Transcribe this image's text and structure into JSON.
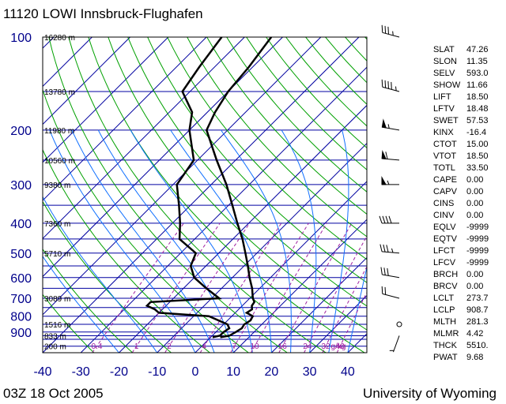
{
  "title": "11120 LOWI Innsbruck-Flughafen",
  "date": "03Z 18 Oct 2005",
  "credit": "University of Wyoming",
  "chart_data": {
    "type": "line",
    "diagram": "Skew-T log-P",
    "xlabel": "",
    "ylabel": "",
    "xlim": [
      -40,
      45
    ],
    "x_ticks": [
      -40,
      -30,
      -20,
      -10,
      0,
      10,
      20,
      30,
      40
    ],
    "ylim": [
      1050,
      100
    ],
    "y_ticks": [
      100,
      200,
      300,
      400,
      500,
      600,
      700,
      800,
      900
    ],
    "y_scale": "log",
    "height_labels": [
      {
        "p": 100,
        "label": "16280 m"
      },
      {
        "p": 150,
        "label": "13780 m"
      },
      {
        "p": 200,
        "label": "11980 m"
      },
      {
        "p": 250,
        "label": "10560 m"
      },
      {
        "p": 300,
        "label": "9380 m"
      },
      {
        "p": 400,
        "label": "7360 m"
      },
      {
        "p": 500,
        "label": "5710 m"
      },
      {
        "p": 700,
        "label": "3089 m"
      },
      {
        "p": 850,
        "label": "1516 m"
      },
      {
        "p": 925,
        "label": "833 m"
      },
      {
        "p": 1000,
        "label": "200 m"
      }
    ],
    "mixing_ratio_labels": [
      "0.4",
      "1",
      "2",
      "4",
      "7",
      "10",
      "16",
      "24",
      "32",
      "40",
      "g/kg"
    ],
    "series": [
      {
        "color": "#000000",
        "points": [
          {
            "p": 936,
            "t": 2.5
          },
          {
            "p": 925,
            "t": 4.5
          },
          {
            "p": 900,
            "t": 5.2
          },
          {
            "p": 875,
            "t": 5.8
          },
          {
            "p": 850,
            "t": 5.4
          },
          {
            "p": 825,
            "t": 6.0
          },
          {
            "p": 800,
            "t": 5.5
          },
          {
            "p": 780,
            "t": 3.0
          },
          {
            "p": 760,
            "t": 3.5
          },
          {
            "p": 740,
            "t": 2.5
          },
          {
            "p": 720,
            "t": 2.2
          },
          {
            "p": 700,
            "t": 0.8
          },
          {
            "p": 650,
            "t": -2.0
          },
          {
            "p": 600,
            "t": -5.5
          },
          {
            "p": 550,
            "t": -9.0
          },
          {
            "p": 500,
            "t": -13.0
          },
          {
            "p": 450,
            "t": -17.5
          },
          {
            "p": 400,
            "t": -23.0
          },
          {
            "p": 350,
            "t": -29.0
          },
          {
            "p": 300,
            "t": -36.0
          },
          {
            "p": 250,
            "t": -45.0
          },
          {
            "p": 200,
            "t": -55.5
          },
          {
            "p": 175,
            "t": -58.0
          },
          {
            "p": 150,
            "t": -60.0
          },
          {
            "p": 125,
            "t": -61.0
          },
          {
            "p": 100,
            "t": -63.0
          }
        ]
      },
      {
        "color": "#000000",
        "points": [
          {
            "p": 936,
            "t": 0.5
          },
          {
            "p": 925,
            "t": 2.0
          },
          {
            "p": 900,
            "t": 2.0
          },
          {
            "p": 875,
            "t": 2.5
          },
          {
            "p": 850,
            "t": 1.0
          },
          {
            "p": 800,
            "t": -6.0
          },
          {
            "p": 780,
            "t": -20.0
          },
          {
            "p": 760,
            "t": -22.0
          },
          {
            "p": 740,
            "t": -25.0
          },
          {
            "p": 720,
            "t": -25.0
          },
          {
            "p": 700,
            "t": -8.0
          },
          {
            "p": 650,
            "t": -14.0
          },
          {
            "p": 600,
            "t": -20.0
          },
          {
            "p": 550,
            "t": -24.0
          },
          {
            "p": 500,
            "t": -26.0
          },
          {
            "p": 450,
            "t": -34.0
          },
          {
            "p": 400,
            "t": -38.0
          },
          {
            "p": 350,
            "t": -43.0
          },
          {
            "p": 300,
            "t": -49.0
          },
          {
            "p": 250,
            "t": -51.0
          },
          {
            "p": 200,
            "t": -60.0
          },
          {
            "p": 175,
            "t": -64.0
          },
          {
            "p": 150,
            "t": -72.0
          },
          {
            "p": 125,
            "t": -74.0
          },
          {
            "p": 100,
            "t": -76.0
          }
        ]
      }
    ],
    "wind_barbs": [
      {
        "p": 925,
        "dir": 200,
        "speed": 5
      },
      {
        "p": 850,
        "dir": 0,
        "speed": 0
      },
      {
        "p": 700,
        "dir": 285,
        "speed": 20
      },
      {
        "p": 600,
        "dir": 280,
        "speed": 30
      },
      {
        "p": 500,
        "dir": 275,
        "speed": 35
      },
      {
        "p": 400,
        "dir": 270,
        "speed": 40
      },
      {
        "p": 300,
        "dir": 270,
        "speed": 55
      },
      {
        "p": 250,
        "dir": 275,
        "speed": 60
      },
      {
        "p": 200,
        "dir": 280,
        "speed": 55
      },
      {
        "p": 150,
        "dir": 285,
        "speed": 45
      },
      {
        "p": 100,
        "dir": 285,
        "speed": 35
      }
    ]
  },
  "indices": [
    {
      "key": "SLAT",
      "value": "47.26"
    },
    {
      "key": "SLON",
      "value": "11.35"
    },
    {
      "key": "SELV",
      "value": "593.0"
    },
    {
      "key": "SHOW",
      "value": "11.66"
    },
    {
      "key": "LIFT",
      "value": "18.50"
    },
    {
      "key": "LFTV",
      "value": "18.48"
    },
    {
      "key": "SWET",
      "value": "57.53"
    },
    {
      "key": "KINX",
      "value": "-16.4"
    },
    {
      "key": "CTOT",
      "value": "15.00"
    },
    {
      "key": "VTOT",
      "value": "18.50"
    },
    {
      "key": "TOTL",
      "value": "33.50"
    },
    {
      "key": "CAPE",
      "value": "0.00"
    },
    {
      "key": "CAPV",
      "value": "0.00"
    },
    {
      "key": "CINS",
      "value": "0.00"
    },
    {
      "key": "CINV",
      "value": "0.00"
    },
    {
      "key": "EQLV",
      "value": "-9999"
    },
    {
      "key": "EQTV",
      "value": "-9999"
    },
    {
      "key": "LFCT",
      "value": "-9999"
    },
    {
      "key": "LFCV",
      "value": "-9999"
    },
    {
      "key": "BRCH",
      "value": "0.00"
    },
    {
      "key": "BRCV",
      "value": "0.00"
    },
    {
      "key": "LCLT",
      "value": "273.7"
    },
    {
      "key": "LCLP",
      "value": "908.7"
    },
    {
      "key": "MLTH",
      "value": "281.3"
    },
    {
      "key": "MLMR",
      "value": "4.42"
    },
    {
      "key": "THCK",
      "value": "5510."
    },
    {
      "key": "PWAT",
      "value": "9.68"
    }
  ]
}
